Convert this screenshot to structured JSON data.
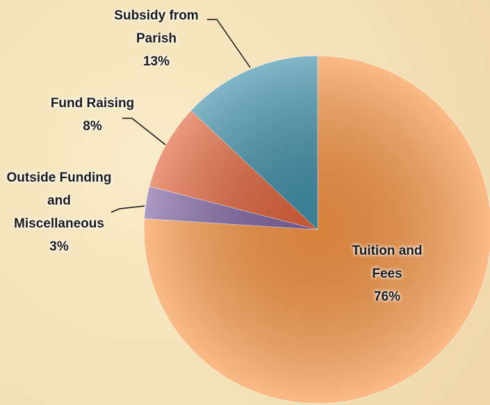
{
  "chart_data": {
    "type": "pie",
    "categories": [
      "Tuition and Fees",
      "Outside Funding and Miscellaneous",
      "Fund Raising",
      "Subsidy from Parish"
    ],
    "values": [
      76,
      3,
      8,
      13
    ],
    "value_labels": [
      "76%",
      "3%",
      "8%",
      "13%"
    ],
    "colors": [
      "#f79646",
      "#8064a2",
      "#e0633a",
      "#3f8fa8"
    ]
  }
}
